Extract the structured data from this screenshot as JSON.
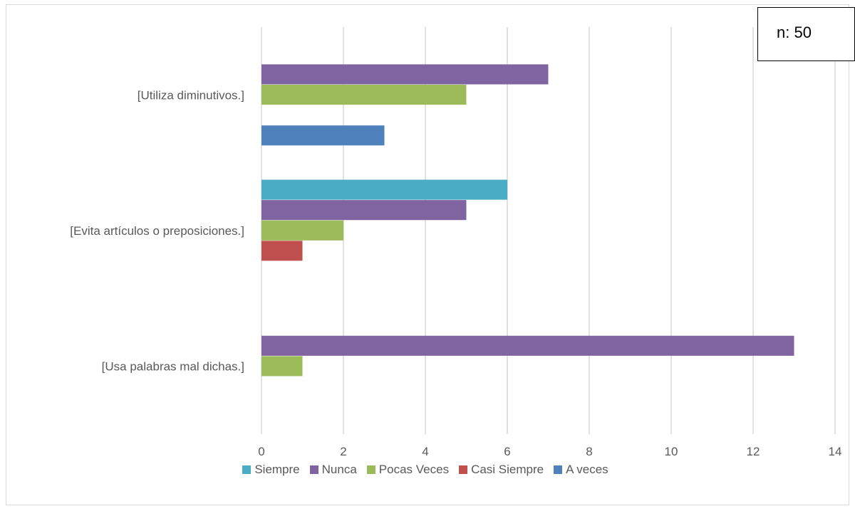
{
  "annotation": {
    "text": "n: 50"
  },
  "chart_data": {
    "type": "bar",
    "orientation": "horizontal",
    "categories": [
      "[Utiliza diminutivos.]",
      "[Evita artículos o preposiciones.]",
      "[Usa palabras mal dichas.]"
    ],
    "series": [
      {
        "name": "Siempre",
        "color": "#4bacc6",
        "values": [
          0,
          6,
          0
        ]
      },
      {
        "name": "Nunca",
        "color": "#8064a2",
        "values": [
          7,
          5,
          13
        ]
      },
      {
        "name": "Pocas Veces",
        "color": "#9bbb59",
        "values": [
          5,
          2,
          1
        ]
      },
      {
        "name": "Casi Siempre",
        "color": "#c0504d",
        "values": [
          0,
          1,
          0
        ]
      },
      {
        "name": "A veces",
        "color": "#4f81bd",
        "values": [
          3,
          0,
          0
        ]
      }
    ],
    "xticks": [
      "0",
      "2",
      "4",
      "6",
      "8",
      "10",
      "12",
      "14"
    ],
    "xlim": [
      0,
      14
    ],
    "grid": true,
    "legend_position": "bottom"
  }
}
